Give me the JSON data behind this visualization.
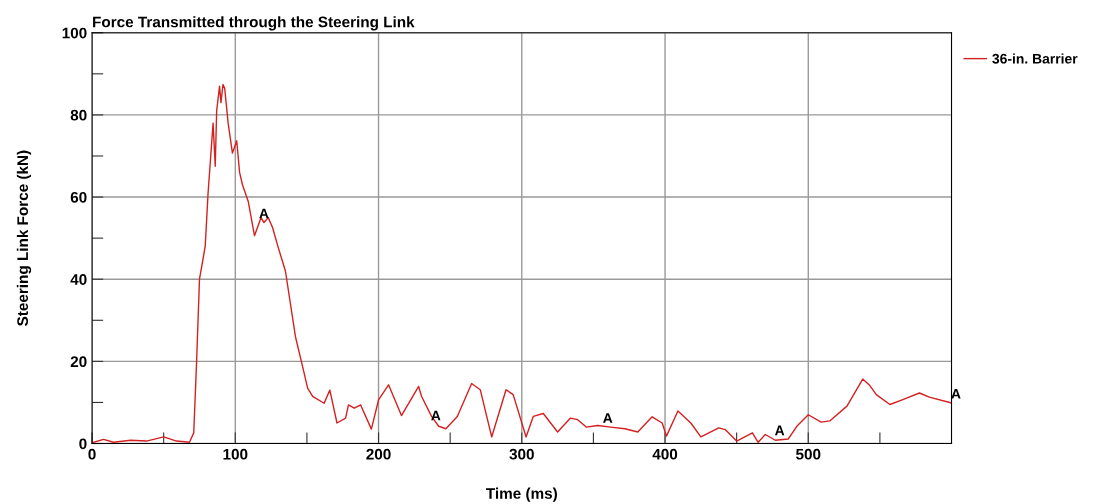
{
  "chart_data": {
    "type": "line",
    "title": "Force Transmitted through the Steering Link",
    "xlabel": "Time (ms)",
    "ylabel": "Steering Link Force (kN)",
    "x": [
      0,
      8,
      15,
      27,
      38,
      50,
      59,
      68,
      71,
      73,
      75,
      79,
      81,
      84.5,
      86,
      87,
      89,
      90,
      91.4,
      92.6,
      95,
      98,
      101,
      103,
      105,
      109,
      113.4,
      118,
      120,
      123,
      126,
      130,
      135,
      142,
      147,
      150.5,
      154,
      162,
      166,
      171,
      177,
      179,
      183,
      187.5,
      195,
      200,
      207,
      216,
      228,
      230,
      237,
      242,
      247,
      255,
      265,
      271,
      279,
      289,
      294,
      303,
      308,
      315,
      325,
      334,
      339,
      345,
      353,
      362,
      372,
      381,
      391,
      398,
      401,
      409,
      418,
      425,
      437.5,
      442,
      450,
      461,
      465,
      470,
      477,
      486,
      492,
      500,
      509,
      515,
      527,
      538,
      543,
      547.5,
      557,
      566,
      577.6,
      584.5,
      599.6
    ],
    "series": [
      {
        "name": "36-in. Barrier",
        "color": "#d42020",
        "values": [
          0.2,
          1.0,
          0.3,
          0.8,
          0.6,
          1.6,
          0.6,
          0.3,
          2.6,
          20,
          40,
          48,
          61,
          78,
          67.5,
          81,
          87,
          83,
          87.4,
          86.5,
          78,
          70.7,
          73.7,
          66,
          63,
          59,
          50.6,
          55,
          53.8,
          55,
          52.6,
          47.7,
          42,
          26,
          18.7,
          13.5,
          11.5,
          9.8,
          13,
          5,
          6.2,
          9.4,
          8.6,
          9.4,
          3.5,
          10.6,
          14.3,
          6.8,
          13.9,
          11.5,
          6.6,
          4.2,
          3.6,
          6.6,
          14.6,
          13.1,
          1.6,
          13.1,
          11.9,
          1.6,
          6.6,
          7.3,
          2.8,
          6.2,
          5.8,
          4.0,
          4.4,
          4.0,
          3.6,
          2.8,
          6.5,
          5.0,
          1.8,
          7.9,
          5.0,
          1.6,
          3.8,
          3.4,
          0.6,
          2.6,
          0.3,
          2.2,
          0.8,
          1.1,
          4.2,
          7.0,
          5.2,
          5.5,
          9.1,
          15.7,
          14.1,
          11.9,
          9.5,
          10.7,
          12.3,
          11.3,
          9.9
        ]
      }
    ],
    "annotations": [
      {
        "text": "A",
        "x": 120,
        "y": 53.8
      },
      {
        "text": "A",
        "x": 240,
        "y": 4.6
      },
      {
        "text": "A",
        "x": 360,
        "y": 4.0
      },
      {
        "text": "A",
        "x": 480,
        "y": 1.0
      },
      {
        "text": "A",
        "x": 599.6,
        "y": 9.9
      }
    ],
    "xlim": [
      0,
      600
    ],
    "ylim": [
      0,
      100
    ],
    "xticks": [
      0,
      {
        "value": 50,
        "label": null
      },
      100,
      {
        "value": 150,
        "label": null
      },
      200,
      {
        "value": 250,
        "label": null
      },
      300,
      {
        "value": 350,
        "label": null
      },
      400,
      {
        "value": 450,
        "label": null
      },
      500,
      {
        "value": 550,
        "label": null
      }
    ],
    "yticks": [
      0,
      {
        "value": 10,
        "label": null
      },
      20,
      {
        "value": 30,
        "label": null
      },
      40,
      {
        "value": 50,
        "label": null
      },
      60,
      {
        "value": 70,
        "label": null
      },
      80,
      {
        "value": 90,
        "label": null
      },
      100
    ],
    "grid": true,
    "legend": "top right",
    "line_style": "solid",
    "marker": "none"
  }
}
